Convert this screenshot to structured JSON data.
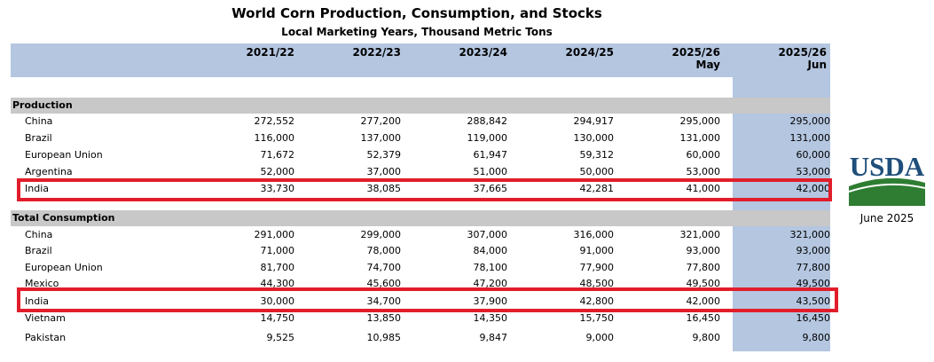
{
  "title": "World Corn Production, Consumption, and Stocks",
  "subtitle": "Local Marketing Years, Thousand Metric Tons",
  "columns": [
    {
      "year": "2021/22",
      "sub": ""
    },
    {
      "year": "2022/23",
      "sub": ""
    },
    {
      "year": "2023/24",
      "sub": ""
    },
    {
      "year": "2024/25",
      "sub": ""
    },
    {
      "year": "2025/26",
      "sub": "May"
    },
    {
      "year": "2025/26",
      "sub": "Jun"
    }
  ],
  "sections": [
    {
      "name": "Production",
      "rows": [
        {
          "label": "China",
          "values": [
            "272,552",
            "277,200",
            "288,842",
            "294,917",
            "295,000",
            "295,000"
          ]
        },
        {
          "label": "Brazil",
          "values": [
            "116,000",
            "137,000",
            "119,000",
            "130,000",
            "131,000",
            "131,000"
          ]
        },
        {
          "label": "European Union",
          "values": [
            "71,672",
            "52,379",
            "61,947",
            "59,312",
            "60,000",
            "60,000"
          ]
        },
        {
          "label": "Argentina",
          "values": [
            "52,000",
            "37,000",
            "51,000",
            "50,000",
            "53,000",
            "53,000"
          ]
        },
        {
          "label": "India",
          "values": [
            "33,730",
            "38,085",
            "37,665",
            "42,281",
            "41,000",
            "42,000"
          ]
        }
      ]
    },
    {
      "name": "Total Consumption",
      "rows": [
        {
          "label": "China",
          "values": [
            "291,000",
            "299,000",
            "307,000",
            "316,000",
            "321,000",
            "321,000"
          ]
        },
        {
          "label": "Brazil",
          "values": [
            "71,000",
            "78,000",
            "84,000",
            "91,000",
            "93,000",
            "93,000"
          ]
        },
        {
          "label": "European Union",
          "values": [
            "81,700",
            "74,700",
            "78,100",
            "77,900",
            "77,800",
            "77,800"
          ]
        },
        {
          "label": "Mexico",
          "values": [
            "44,300",
            "45,600",
            "47,200",
            "48,500",
            "49,500",
            "49,500"
          ]
        },
        {
          "label": "India",
          "values": [
            "30,000",
            "34,700",
            "37,900",
            "42,800",
            "42,000",
            "43,500"
          ]
        },
        {
          "label": "Vietnam",
          "values": [
            "14,750",
            "13,850",
            "14,350",
            "15,750",
            "16,450",
            "16,450"
          ]
        },
        {
          "label": "Pakistan",
          "values": [
            "9,525",
            "10,985",
            "9,847",
            "9,000",
            "9,800",
            "9,800"
          ]
        }
      ]
    }
  ],
  "sidebar": {
    "logo_text": "USDA",
    "date": "June 2025"
  },
  "colors": {
    "header_band": "#b4c6e0",
    "section_band": "#c8c8c8",
    "highlight_box": "#e21d2b",
    "usda_blue": "#1f4e79",
    "usda_green": "#2e7d32"
  }
}
